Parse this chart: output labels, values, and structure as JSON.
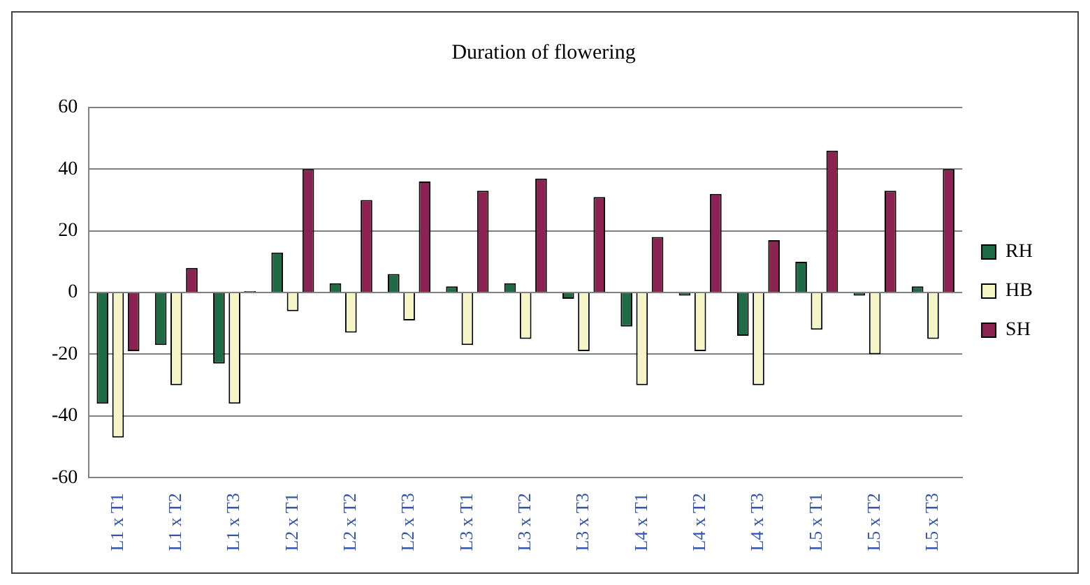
{
  "chart_data": {
    "type": "bar",
    "title": "Duration of flowering",
    "categories": [
      "L1 x T1",
      "L1 x T2",
      "L1 x T3",
      "L2 x T1",
      "L2 x T2",
      "L2 x T3",
      "L3 x T1",
      "L3 x T2",
      "L3 x T3",
      "L4 x T1",
      "L4 x T2",
      "L4 x T3",
      "L5 x T1",
      "L5 x T2",
      "L5 x T3"
    ],
    "series": [
      {
        "name": "RH",
        "color": "#1e6b45",
        "values": [
          -36,
          -17,
          -23,
          13,
          3,
          6,
          2,
          3,
          -2,
          -11,
          -1,
          -14,
          10,
          -1,
          2
        ]
      },
      {
        "name": "HB",
        "color": "#f5f5c8",
        "values": [
          -47,
          -30,
          -36,
          -6,
          -13,
          -9,
          -17,
          -15,
          -19,
          -30,
          -19,
          -30,
          -12,
          -20,
          -15
        ]
      },
      {
        "name": "SH",
        "color": "#8b2252",
        "values": [
          -19,
          8,
          0.5,
          40,
          30,
          36,
          33,
          37,
          31,
          18,
          32,
          17,
          46,
          33,
          40
        ]
      }
    ],
    "ylim": [
      -60,
      60
    ],
    "yticks": [
      -60,
      -40,
      -20,
      0,
      20,
      40,
      60
    ],
    "grid": "y",
    "legend": "right"
  }
}
